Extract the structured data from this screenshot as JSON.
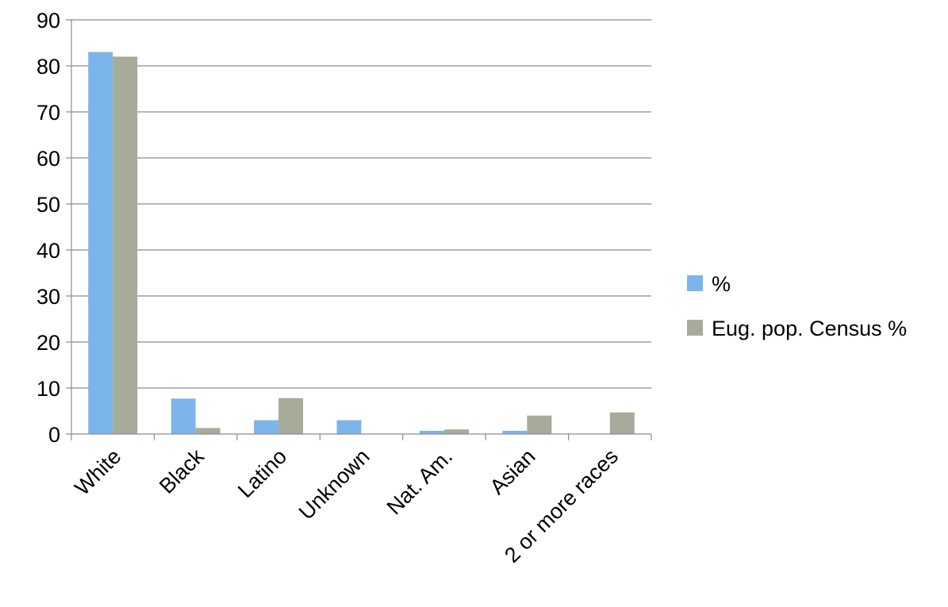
{
  "chart_data": {
    "type": "bar",
    "categories": [
      "White",
      "Black",
      "Latino",
      "Unknown",
      "Nat. Am.",
      "Asian",
      "2 or more races"
    ],
    "series": [
      {
        "name": "%",
        "values": [
          83,
          7.7,
          3,
          3,
          0.7,
          0.7,
          0
        ],
        "color": "#7cb5ec"
      },
      {
        "name": "Eug. pop. Census %",
        "values": [
          82,
          1.3,
          7.8,
          0,
          1,
          4,
          4.7
        ],
        "color": "#a6ab9a"
      }
    ],
    "ylim": [
      0,
      90
    ],
    "yticks": [
      "0",
      "10",
      "20",
      "30",
      "40",
      "50",
      "60",
      "70",
      "80",
      "90"
    ],
    "title": "",
    "xlabel": "",
    "ylabel": "",
    "grid": true,
    "legend_position": "right"
  }
}
